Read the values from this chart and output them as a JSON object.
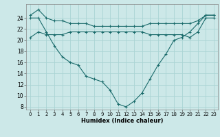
{
  "xlabel": "Humidex (Indice chaleur)",
  "background_color": "#cce8e8",
  "grid_color": "#aad4d4",
  "line_color": "#1a6b6b",
  "xlim": [
    -0.5,
    23.5
  ],
  "ylim": [
    7.5,
    26.5
  ],
  "xticks": [
    0,
    1,
    2,
    3,
    4,
    5,
    6,
    7,
    8,
    9,
    10,
    11,
    12,
    13,
    14,
    15,
    16,
    17,
    18,
    19,
    20,
    21,
    22,
    23
  ],
  "yticks": [
    8,
    10,
    12,
    14,
    16,
    18,
    20,
    22,
    24
  ],
  "hours": [
    0,
    1,
    2,
    3,
    4,
    5,
    6,
    7,
    8,
    9,
    10,
    11,
    12,
    13,
    14,
    15,
    16,
    17,
    18,
    19,
    20,
    21,
    22,
    23
  ],
  "line_max": [
    24.5,
    25.5,
    24.0,
    23.5,
    23.5,
    23.0,
    23.0,
    23.0,
    22.5,
    22.5,
    22.5,
    22.5,
    22.5,
    22.5,
    22.5,
    23.0,
    23.0,
    23.0,
    23.0,
    23.0,
    23.0,
    23.5,
    24.5,
    24.5
  ],
  "line_min": [
    24.0,
    24.0,
    21.5,
    19.0,
    17.0,
    16.0,
    15.5,
    13.5,
    13.0,
    12.5,
    11.0,
    8.5,
    8.0,
    9.0,
    10.5,
    13.0,
    15.5,
    17.5,
    20.0,
    20.5,
    21.5,
    23.0,
    24.5,
    24.5
  ],
  "line_mean": [
    20.5,
    21.5,
    21.0,
    21.0,
    21.0,
    21.5,
    21.5,
    21.5,
    21.5,
    21.5,
    21.5,
    21.5,
    21.5,
    21.5,
    21.5,
    21.0,
    21.0,
    21.0,
    21.0,
    21.0,
    20.5,
    21.5,
    24.0,
    24.0
  ]
}
